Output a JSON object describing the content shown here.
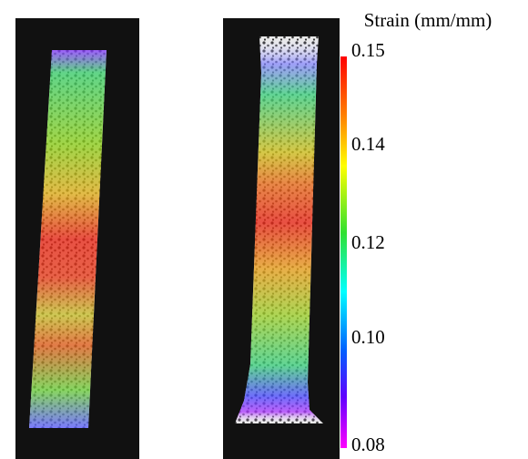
{
  "colorbar": {
    "title": "Strain (mm/mm)",
    "ticks": [
      0.15,
      0.14,
      0.12,
      {
        "value": 0.1,
        "label": "0.10"
      },
      0.08
    ]
  }
}
